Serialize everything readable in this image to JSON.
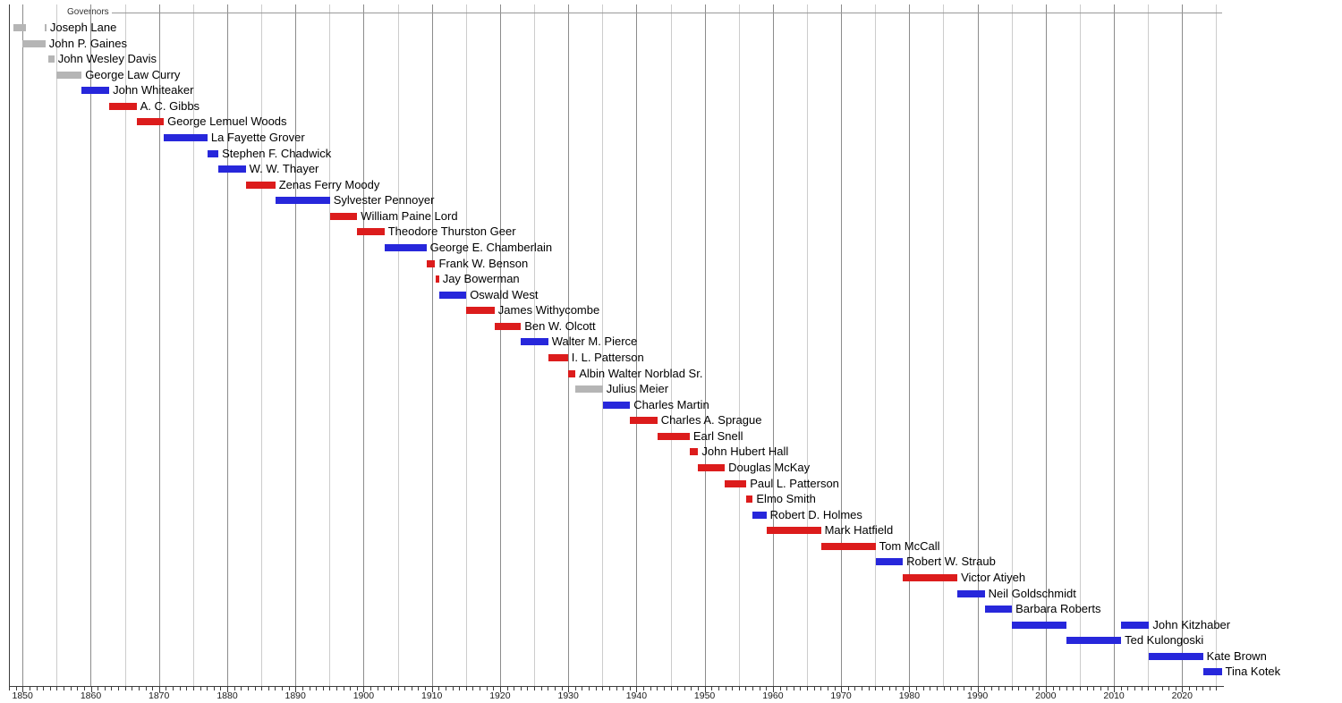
{
  "chart_data": {
    "type": "timeline",
    "title": "Governors",
    "axis": {
      "start_year": 1848,
      "end_year": 2025.9,
      "gridline_step_years": 5,
      "tick_step_years": 1,
      "label_years": [
        1850,
        1860,
        1870,
        1880,
        1890,
        1900,
        1910,
        1920,
        1930,
        1940,
        1950,
        1960,
        1970,
        1980,
        1990,
        2000,
        2010,
        2020
      ]
    },
    "party_colors": {
      "democratic": "#2727db",
      "republican": "#dc1c1c",
      "other": "#b5b5b5"
    },
    "governors": [
      {
        "name": "Joseph Lane",
        "party": "other",
        "terms": [
          [
            1848.6,
            1850.45
          ],
          [
            1853.3,
            1853.5
          ]
        ]
      },
      {
        "name": "John P. Gaines",
        "party": "other",
        "terms": [
          [
            1849.9,
            1853.35
          ]
        ]
      },
      {
        "name": "John Wesley Davis",
        "party": "other",
        "terms": [
          [
            1853.75,
            1854.65
          ]
        ]
      },
      {
        "name": "George Law Curry",
        "party": "other",
        "terms": [
          [
            1854.95,
            1858.65
          ]
        ]
      },
      {
        "name": "John Whiteaker",
        "party": "democratic",
        "terms": [
          [
            1858.65,
            1862.7
          ]
        ]
      },
      {
        "name": "A. C. Gibbs",
        "party": "republican",
        "terms": [
          [
            1862.7,
            1866.7
          ]
        ]
      },
      {
        "name": "George Lemuel Woods",
        "party": "republican",
        "terms": [
          [
            1866.7,
            1870.7
          ]
        ]
      },
      {
        "name": "La Fayette Grover",
        "party": "democratic",
        "terms": [
          [
            1870.7,
            1877.1
          ]
        ]
      },
      {
        "name": "Stephen F. Chadwick",
        "party": "democratic",
        "terms": [
          [
            1877.1,
            1878.7
          ]
        ]
      },
      {
        "name": "W. W. Thayer",
        "party": "democratic",
        "terms": [
          [
            1878.7,
            1882.7
          ]
        ]
      },
      {
        "name": "Zenas Ferry Moody",
        "party": "republican",
        "terms": [
          [
            1882.7,
            1887.05
          ]
        ]
      },
      {
        "name": "Sylvester Pennoyer",
        "party": "democratic",
        "terms": [
          [
            1887.05,
            1895.05
          ]
        ]
      },
      {
        "name": "William Paine Lord",
        "party": "republican",
        "terms": [
          [
            1895.05,
            1899.05
          ]
        ]
      },
      {
        "name": "Theodore Thurston Geer",
        "party": "republican",
        "terms": [
          [
            1899.05,
            1903.05
          ]
        ]
      },
      {
        "name": "George E. Chamberlain",
        "party": "democratic",
        "terms": [
          [
            1903.05,
            1909.2
          ]
        ]
      },
      {
        "name": "Frank W. Benson",
        "party": "republican",
        "terms": [
          [
            1909.2,
            1910.5
          ]
        ]
      },
      {
        "name": "Jay Bowerman",
        "party": "republican",
        "terms": [
          [
            1910.5,
            1911.05
          ]
        ]
      },
      {
        "name": "Oswald West",
        "party": "democratic",
        "terms": [
          [
            1911.05,
            1915.05
          ]
        ]
      },
      {
        "name": "James Withycombe",
        "party": "republican",
        "terms": [
          [
            1915.05,
            1919.2
          ]
        ]
      },
      {
        "name": "Ben W. Olcott",
        "party": "republican",
        "terms": [
          [
            1919.2,
            1923.05
          ]
        ]
      },
      {
        "name": "Walter M. Pierce",
        "party": "democratic",
        "terms": [
          [
            1923.05,
            1927.05
          ]
        ]
      },
      {
        "name": "I. L. Patterson",
        "party": "republican",
        "terms": [
          [
            1927.05,
            1929.95
          ]
        ]
      },
      {
        "name": "Albin Walter Norblad Sr.",
        "party": "republican",
        "terms": [
          [
            1929.95,
            1931.05
          ]
        ]
      },
      {
        "name": "Julius Meier",
        "party": "other",
        "terms": [
          [
            1931.05,
            1935.05
          ]
        ]
      },
      {
        "name": "Charles Martin",
        "party": "democratic",
        "terms": [
          [
            1935.05,
            1939.05
          ]
        ]
      },
      {
        "name": "Charles A. Sprague",
        "party": "republican",
        "terms": [
          [
            1939.05,
            1943.05
          ]
        ]
      },
      {
        "name": "Earl Snell",
        "party": "republican",
        "terms": [
          [
            1943.05,
            1947.8
          ]
        ]
      },
      {
        "name": "John Hubert Hall",
        "party": "republican",
        "terms": [
          [
            1947.8,
            1949.05
          ]
        ]
      },
      {
        "name": "Douglas McKay",
        "party": "republican",
        "terms": [
          [
            1949.05,
            1952.95
          ]
        ]
      },
      {
        "name": "Paul L. Patterson",
        "party": "republican",
        "terms": [
          [
            1952.95,
            1956.1
          ]
        ]
      },
      {
        "name": "Elmo Smith",
        "party": "republican",
        "terms": [
          [
            1956.1,
            1957.05
          ]
        ]
      },
      {
        "name": "Robert D. Holmes",
        "party": "democratic",
        "terms": [
          [
            1957.05,
            1959.05
          ]
        ]
      },
      {
        "name": "Mark Hatfield",
        "party": "republican",
        "terms": [
          [
            1959.05,
            1967.05
          ]
        ]
      },
      {
        "name": "Tom McCall",
        "party": "republican",
        "terms": [
          [
            1967.05,
            1975.05
          ]
        ]
      },
      {
        "name": "Robert W. Straub",
        "party": "democratic",
        "terms": [
          [
            1975.05,
            1979.05
          ]
        ]
      },
      {
        "name": "Victor Atiyeh",
        "party": "republican",
        "terms": [
          [
            1979.05,
            1987.05
          ]
        ]
      },
      {
        "name": "Neil Goldschmidt",
        "party": "democratic",
        "terms": [
          [
            1987.05,
            1991.05
          ]
        ]
      },
      {
        "name": "Barbara Roberts",
        "party": "democratic",
        "terms": [
          [
            1991.05,
            1995.05
          ]
        ]
      },
      {
        "name": "John Kitzhaber",
        "party": "democratic",
        "terms": [
          [
            1995.05,
            2003.05
          ],
          [
            2011.05,
            2015.15
          ]
        ]
      },
      {
        "name": "Ted Kulongoski",
        "party": "democratic",
        "terms": [
          [
            2003.05,
            2011.05
          ]
        ]
      },
      {
        "name": "Kate Brown",
        "party": "democratic",
        "terms": [
          [
            2015.15,
            2023.05
          ]
        ]
      },
      {
        "name": "Tina Kotek",
        "party": "democratic",
        "terms": [
          [
            2023.05,
            2025.8
          ]
        ]
      }
    ]
  },
  "colors": {
    "grid_major": "#8c8c8c",
    "grid_minor": "#cccccc",
    "axis_line": "#3c3c3c",
    "header_rule": "#999999",
    "label_text": "#000000"
  }
}
